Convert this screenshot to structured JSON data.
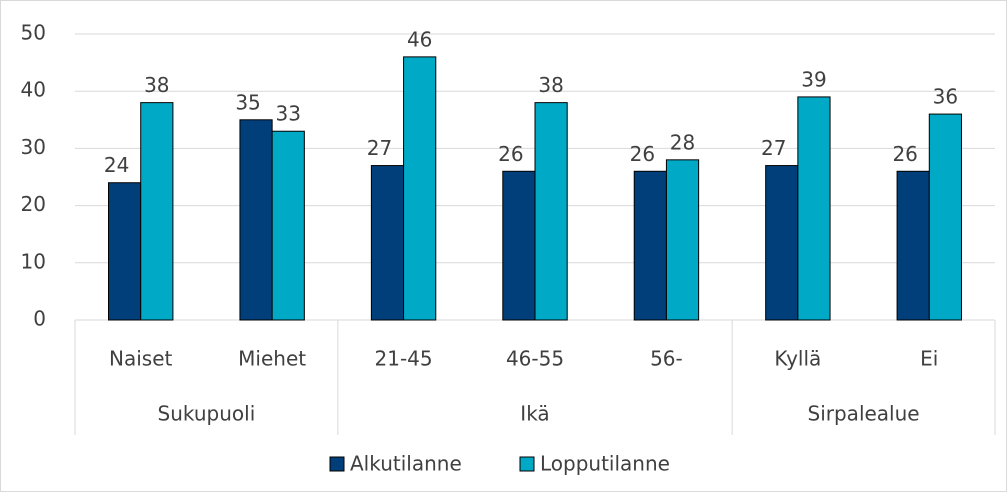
{
  "chart_data": {
    "type": "bar",
    "groups": [
      {
        "name": "Sukupuoli",
        "categories": [
          "Naiset",
          "Miehet"
        ]
      },
      {
        "name": "Ikä",
        "categories": [
          "21-45",
          "46-55",
          "56-"
        ]
      },
      {
        "name": "Sirpalealue",
        "categories": [
          "Kyllä",
          "Ei"
        ]
      }
    ],
    "series": [
      {
        "name": "Alkutilanne",
        "color": "#003f7a",
        "values": [
          24,
          35,
          27,
          26,
          26,
          27,
          26
        ]
      },
      {
        "name": "Lopputilanne",
        "color": "#00a9c6",
        "values": [
          38,
          33,
          46,
          38,
          28,
          39,
          36
        ]
      }
    ],
    "ylim": [
      0,
      50
    ],
    "yticks": [
      0,
      10,
      20,
      30,
      40,
      50
    ],
    "grid": true,
    "legend": "bottom"
  }
}
